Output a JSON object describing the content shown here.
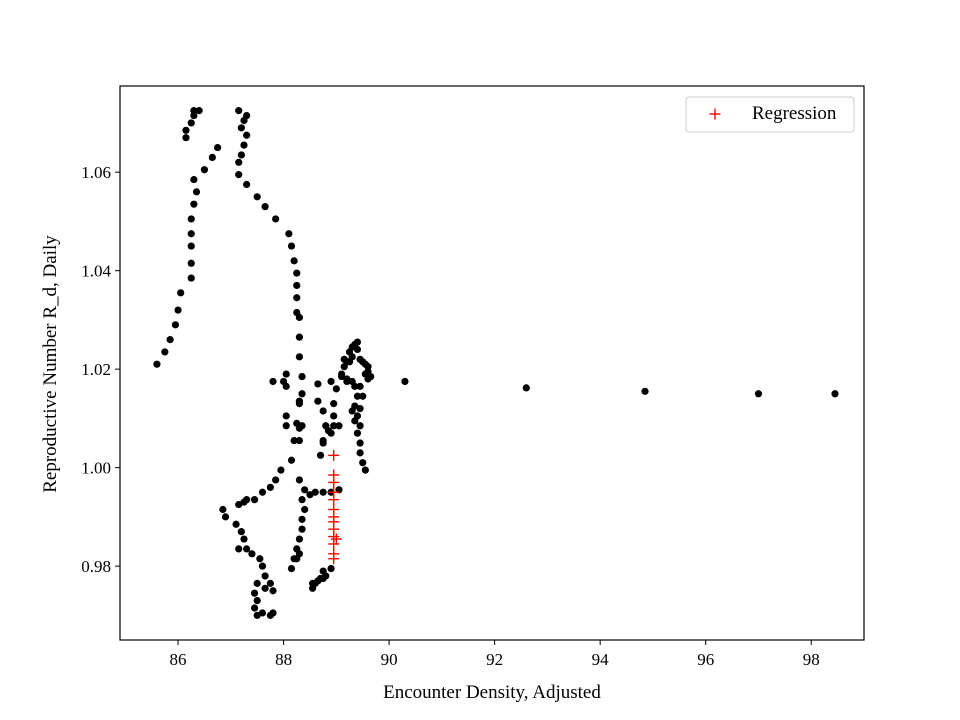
{
  "chart_data": {
    "type": "scatter",
    "xlabel": "Encounter Density, Adjusted",
    "ylabel": "Reproductive Number R_d, Daily",
    "xlim": [
      84.9,
      99.0
    ],
    "ylim": [
      0.965,
      1.0775
    ],
    "x_ticks": [
      86,
      88,
      90,
      92,
      94,
      96,
      98
    ],
    "y_ticks": [
      0.98,
      1.0,
      1.02,
      1.04,
      1.06
    ],
    "y_tick_labels": [
      "0.98",
      "1.00",
      "1.02",
      "1.04",
      "1.06"
    ],
    "grid": false,
    "legend": {
      "position": "top-right",
      "entries": [
        "Regression"
      ]
    },
    "colors": {
      "data_points": "#000000",
      "regression": "#ff0000"
    },
    "series": [
      {
        "marker": "circle",
        "color": "#000000",
        "points": [
          [
            85.6,
            1.021
          ],
          [
            85.75,
            1.0235
          ],
          [
            85.85,
            1.026
          ],
          [
            85.95,
            1.029
          ],
          [
            86.0,
            1.032
          ],
          [
            86.05,
            1.0355
          ],
          [
            86.25,
            1.0385
          ],
          [
            86.25,
            1.0415
          ],
          [
            86.25,
            1.045
          ],
          [
            86.25,
            1.0475
          ],
          [
            86.25,
            1.0505
          ],
          [
            86.3,
            1.0535
          ],
          [
            86.3,
            1.0585
          ],
          [
            86.35,
            1.056
          ],
          [
            86.5,
            1.0605
          ],
          [
            86.65,
            1.063
          ],
          [
            86.75,
            1.065
          ],
          [
            86.15,
            1.067
          ],
          [
            86.15,
            1.0685
          ],
          [
            86.25,
            1.07
          ],
          [
            86.3,
            1.0715
          ],
          [
            86.3,
            1.0725
          ],
          [
            86.4,
            1.0725
          ],
          [
            87.15,
            1.0725
          ],
          [
            87.25,
            1.0705
          ],
          [
            87.3,
            1.0715
          ],
          [
            87.2,
            1.069
          ],
          [
            87.3,
            1.0675
          ],
          [
            87.25,
            1.0655
          ],
          [
            87.2,
            1.0635
          ],
          [
            87.15,
            1.062
          ],
          [
            87.15,
            1.0595
          ],
          [
            87.3,
            1.0575
          ],
          [
            87.5,
            1.055
          ],
          [
            87.65,
            1.053
          ],
          [
            87.85,
            1.0505
          ],
          [
            88.1,
            1.0475
          ],
          [
            88.15,
            1.045
          ],
          [
            88.2,
            1.042
          ],
          [
            88.25,
            1.0395
          ],
          [
            88.25,
            1.037
          ],
          [
            88.25,
            1.0345
          ],
          [
            88.25,
            1.0315
          ],
          [
            88.3,
            1.0305
          ],
          [
            88.3,
            1.0265
          ],
          [
            88.3,
            1.0225
          ],
          [
            88.35,
            1.0185
          ],
          [
            88.35,
            1.015
          ],
          [
            88.3,
            1.013
          ],
          [
            88.35,
            1.0085
          ],
          [
            88.3,
            1.0055
          ],
          [
            87.8,
            1.0175
          ],
          [
            88.0,
            1.0175
          ],
          [
            88.05,
            1.019
          ],
          [
            88.05,
            1.0165
          ],
          [
            88.05,
            1.0105
          ],
          [
            88.05,
            1.0085
          ],
          [
            88.25,
            1.009
          ],
          [
            88.3,
            1.008
          ],
          [
            88.3,
            1.0135
          ],
          [
            88.2,
            1.0055
          ],
          [
            88.65,
            1.017
          ],
          [
            88.65,
            1.0135
          ],
          [
            88.75,
            1.0115
          ],
          [
            88.8,
            1.0085
          ],
          [
            88.95,
            1.0085
          ],
          [
            89.05,
            1.0085
          ],
          [
            88.9,
            1.0175
          ],
          [
            89.0,
            1.016
          ],
          [
            88.95,
            1.013
          ],
          [
            88.95,
            1.0105
          ],
          [
            88.9,
            1.007
          ],
          [
            88.85,
            1.0075
          ],
          [
            88.75,
            1.005
          ],
          [
            88.7,
            1.0025
          ],
          [
            88.75,
            1.0055
          ],
          [
            89.2,
            1.0175
          ],
          [
            89.3,
            1.0175
          ],
          [
            89.35,
            1.0165
          ],
          [
            89.4,
            1.0145
          ],
          [
            89.35,
            1.0125
          ],
          [
            89.3,
            1.0115
          ],
          [
            89.35,
            1.0095
          ],
          [
            89.4,
            1.007
          ],
          [
            89.45,
            1.005
          ],
          [
            89.45,
            1.003
          ],
          [
            89.5,
            1.001
          ],
          [
            89.55,
            0.9995
          ],
          [
            89.45,
            1.0165
          ],
          [
            89.5,
            1.0145
          ],
          [
            89.45,
            1.012
          ],
          [
            89.4,
            1.0105
          ],
          [
            89.45,
            1.0085
          ],
          [
            89.1,
            1.019
          ],
          [
            89.15,
            1.0205
          ],
          [
            89.2,
            1.0215
          ],
          [
            89.25,
            1.0235
          ],
          [
            89.3,
            1.0245
          ],
          [
            89.35,
            1.025
          ],
          [
            89.4,
            1.0255
          ],
          [
            89.4,
            1.024
          ],
          [
            89.45,
            1.022
          ],
          [
            89.5,
            1.0215
          ],
          [
            89.55,
            1.021
          ],
          [
            89.6,
            1.0205
          ],
          [
            89.6,
            1.0195
          ],
          [
            89.65,
            1.0185
          ],
          [
            89.6,
            1.018
          ],
          [
            89.55,
            1.019
          ],
          [
            89.25,
            1.0215
          ],
          [
            89.3,
            1.0225
          ],
          [
            89.15,
            1.022
          ],
          [
            89.2,
            1.018
          ],
          [
            89.1,
            1.0185
          ],
          [
            90.3,
            1.0175
          ],
          [
            92.6,
            1.0162
          ],
          [
            94.85,
            1.0155
          ],
          [
            97.0,
            1.015
          ],
          [
            98.45,
            1.015
          ],
          [
            88.15,
            1.0015
          ],
          [
            87.95,
            0.9995
          ],
          [
            87.85,
            0.9975
          ],
          [
            87.75,
            0.996
          ],
          [
            87.6,
            0.995
          ],
          [
            87.45,
            0.9935
          ],
          [
            87.25,
            0.993
          ],
          [
            87.3,
            0.9935
          ],
          [
            87.15,
            0.9925
          ],
          [
            86.85,
            0.9915
          ],
          [
            86.9,
            0.99
          ],
          [
            87.1,
            0.9885
          ],
          [
            87.2,
            0.987
          ],
          [
            87.25,
            0.9855
          ],
          [
            87.15,
            0.9835
          ],
          [
            87.3,
            0.9835
          ],
          [
            87.4,
            0.9825
          ],
          [
            87.55,
            0.9815
          ],
          [
            87.6,
            0.98
          ],
          [
            87.65,
            0.978
          ],
          [
            87.75,
            0.9765
          ],
          [
            87.8,
            0.975
          ],
          [
            87.65,
            0.9755
          ],
          [
            87.5,
            0.9765
          ],
          [
            87.45,
            0.9745
          ],
          [
            87.5,
            0.973
          ],
          [
            87.45,
            0.9715
          ],
          [
            87.5,
            0.97
          ],
          [
            87.6,
            0.9705
          ],
          [
            87.75,
            0.97
          ],
          [
            87.8,
            0.9705
          ],
          [
            88.3,
            0.9975
          ],
          [
            88.4,
            0.9955
          ],
          [
            88.35,
            0.9935
          ],
          [
            88.4,
            0.9915
          ],
          [
            88.35,
            0.9895
          ],
          [
            88.35,
            0.9875
          ],
          [
            88.3,
            0.9855
          ],
          [
            88.25,
            0.9835
          ],
          [
            88.2,
            0.9815
          ],
          [
            88.15,
            0.9795
          ],
          [
            88.25,
            0.9815
          ],
          [
            88.3,
            0.9825
          ],
          [
            88.5,
            0.9945
          ],
          [
            88.6,
            0.995
          ],
          [
            88.75,
            0.995
          ],
          [
            88.9,
            0.995
          ],
          [
            89.05,
            0.9955
          ],
          [
            88.55,
            0.9765
          ],
          [
            88.65,
            0.977
          ],
          [
            88.75,
            0.9775
          ],
          [
            88.8,
            0.978
          ],
          [
            88.9,
            0.9795
          ],
          [
            88.75,
            0.979
          ],
          [
            88.6,
            0.9765
          ],
          [
            88.7,
            0.9775
          ],
          [
            88.55,
            0.9755
          ]
        ]
      },
      {
        "name": "Regression",
        "marker": "plus",
        "color": "#ff0000",
        "points": [
          [
            88.95,
            1.0025
          ],
          [
            88.95,
            0.9985
          ],
          [
            88.95,
            0.997
          ],
          [
            88.95,
            0.995
          ],
          [
            88.95,
            0.9935
          ],
          [
            88.95,
            0.9915
          ],
          [
            88.95,
            0.99
          ],
          [
            88.95,
            0.989
          ],
          [
            88.95,
            0.9875
          ],
          [
            88.95,
            0.986
          ],
          [
            89.0,
            0.9855
          ],
          [
            88.95,
            0.9845
          ],
          [
            88.95,
            0.9825
          ],
          [
            88.95,
            0.9815
          ]
        ]
      }
    ]
  }
}
